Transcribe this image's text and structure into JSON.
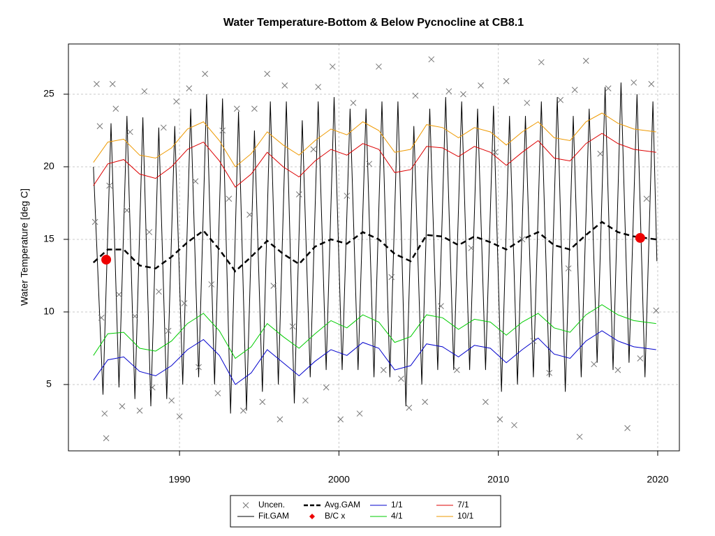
{
  "chart_data": {
    "type": "line",
    "title": "Water Temperature-Bottom & Below Pycnocline at CB8.1",
    "y_label": "Water Temperature [deg C]",
    "xlim": [
      1983.03,
      2021.36
    ],
    "ylim": [
      0.43,
      28.46
    ],
    "xticks": [
      1990,
      2000,
      2010,
      2020
    ],
    "yticks": [
      5,
      10,
      15,
      20,
      25
    ],
    "grid": true,
    "legend": "bottom",
    "series": [
      {
        "name": "Uncen.",
        "color": "#777777",
        "style": "x",
        "x": [
          1984.7,
          1984.8,
          1985.0,
          1985.1,
          1985.3,
          1985.4,
          1985.6,
          1985.8,
          1986.0,
          1986.2,
          1986.4,
          1986.7,
          1986.9,
          1987.2,
          1987.5,
          1987.8,
          1988.1,
          1988.3,
          1988.7,
          1989.0,
          1989.3,
          1989.5,
          1989.8,
          1990.0,
          1990.3,
          1990.6,
          1991.0,
          1991.2,
          1991.6,
          1992.0,
          1992.4,
          1992.7,
          1993.1,
          1993.6,
          1994.0,
          1994.4,
          1994.7,
          1995.2,
          1995.5,
          1995.9,
          1996.3,
          1996.6,
          1997.1,
          1997.5,
          1997.9,
          1998.4,
          1998.7,
          1999.2,
          1999.6,
          2000.1,
          2000.5,
          2000.9,
          2001.3,
          2001.9,
          2002.5,
          2002.8,
          2003.3,
          2003.9,
          2004.4,
          2004.8,
          2005.4,
          2005.8,
          2006.4,
          2006.9,
          2007.4,
          2007.8,
          2008.3,
          2008.9,
          2009.2,
          2009.8,
          2010.1,
          2010.5,
          2011.0,
          2011.5,
          2011.8,
          2012.2,
          2012.7,
          2013.2,
          2013.9,
          2014.4,
          2014.8,
          2015.1,
          2015.5,
          2016.0,
          2016.4,
          2016.9,
          2017.5,
          2018.1,
          2018.5,
          2018.9,
          2019.3,
          2019.6,
          2019.9
        ],
        "values": [
          16.2,
          25.7,
          22.8,
          9.6,
          3.0,
          1.3,
          18.7,
          25.7,
          24.0,
          11.2,
          3.5,
          17.0,
          22.4,
          9.7,
          3.2,
          25.2,
          15.5,
          4.8,
          11.4,
          22.7,
          8.7,
          3.9,
          24.5,
          2.8,
          10.6,
          25.4,
          19.0,
          6.2,
          26.4,
          11.9,
          4.4,
          22.5,
          17.8,
          24.0,
          3.2,
          16.7,
          24.0,
          3.8,
          26.4,
          11.8,
          2.6,
          25.6,
          9.0,
          18.1,
          3.9,
          21.2,
          25.5,
          4.8,
          26.9,
          2.6,
          18.0,
          24.4,
          3.0,
          20.2,
          26.9,
          6.0,
          12.4,
          5.4,
          3.4,
          24.9,
          3.8,
          27.4,
          10.4,
          25.2,
          6.0,
          25.0,
          14.4,
          25.6,
          3.8,
          21.0,
          2.6,
          25.9,
          2.2,
          15.0,
          24.4,
          8.0,
          27.2,
          5.8,
          24.6,
          13.0,
          25.3,
          1.4,
          27.3,
          6.4,
          20.9,
          25.4,
          6.0,
          2.0,
          25.8,
          6.8,
          17.8,
          25.7,
          10.1
        ]
      },
      {
        "name": "Fit.GAM",
        "color": "#000000",
        "style": "solid",
        "x": [
          1984.6,
          1985.2,
          1985.7,
          1986.2,
          1986.7,
          1987.2,
          1987.7,
          1988.2,
          1988.7,
          1989.2,
          1989.7,
          1990.2,
          1990.7,
          1991.2,
          1991.7,
          1992.2,
          1992.7,
          1993.2,
          1993.7,
          1994.2,
          1994.7,
          1995.2,
          1995.7,
          1996.2,
          1996.7,
          1997.2,
          1997.7,
          1998.2,
          1998.7,
          1999.2,
          1999.7,
          2000.2,
          2000.7,
          2001.2,
          2001.7,
          2002.2,
          2002.7,
          2003.2,
          2003.7,
          2004.2,
          2004.7,
          2005.2,
          2005.7,
          2006.2,
          2006.7,
          2007.2,
          2007.7,
          2008.2,
          2008.7,
          2009.2,
          2009.7,
          2010.2,
          2010.7,
          2011.2,
          2011.7,
          2012.2,
          2012.7,
          2013.2,
          2013.7,
          2014.2,
          2014.7,
          2015.2,
          2015.7,
          2016.2,
          2016.7,
          2017.2,
          2017.7,
          2018.2,
          2018.7,
          2019.2,
          2019.7,
          2019.95
        ],
        "values": [
          20.0,
          4.3,
          23.0,
          4.8,
          23.5,
          4.0,
          23.4,
          3.5,
          22.7,
          4.0,
          22.8,
          5.0,
          24.0,
          5.5,
          25.0,
          5.0,
          24.7,
          3.0,
          23.8,
          3.2,
          22.5,
          4.5,
          24.5,
          5.0,
          24.5,
          3.7,
          23.2,
          5.5,
          24.5,
          6.0,
          24.8,
          6.0,
          24.0,
          6.0,
          24.0,
          5.5,
          24.5,
          5.5,
          24.5,
          3.5,
          22.8,
          5.0,
          24.0,
          6.0,
          24.8,
          6.0,
          24.5,
          6.0,
          24.0,
          6.0,
          24.2,
          4.5,
          23.5,
          5.0,
          23.5,
          5.5,
          24.5,
          5.5,
          24.8,
          4.5,
          23.5,
          5.5,
          24.0,
          6.5,
          25.5,
          6.0,
          25.8,
          6.5,
          25.0,
          5.5,
          24.5,
          13.5
        ]
      },
      {
        "name": "Avg.GAM",
        "color": "#000000",
        "style": "dashed",
        "x": [
          1984.6,
          1985.5,
          1986.5,
          1987.5,
          1988.5,
          1989.5,
          1990.5,
          1991.5,
          1992.5,
          1993.5,
          1994.5,
          1995.5,
          1996.5,
          1997.5,
          1998.5,
          1999.5,
          2000.5,
          2001.5,
          2002.5,
          2003.5,
          2004.5,
          2005.5,
          2006.5,
          2007.5,
          2008.5,
          2009.5,
          2010.5,
          2011.5,
          2012.5,
          2013.5,
          2014.5,
          2015.5,
          2016.5,
          2017.5,
          2018.5,
          2019.9
        ],
        "values": [
          13.4,
          14.3,
          14.3,
          13.2,
          13.0,
          13.8,
          14.8,
          15.6,
          14.3,
          12.8,
          13.8,
          14.9,
          14.0,
          13.3,
          14.5,
          15.0,
          14.7,
          15.5,
          15.0,
          14.0,
          13.5,
          15.3,
          15.2,
          14.6,
          15.2,
          14.8,
          14.3,
          15.0,
          15.5,
          14.6,
          14.3,
          15.3,
          16.2,
          15.5,
          15.2,
          15.0
        ]
      },
      {
        "name": "B/C x",
        "color": "#ee0000",
        "style": "dot",
        "x": [
          1985.4,
          2018.9
        ],
        "values": [
          13.6,
          15.1
        ]
      },
      {
        "name": "1/1",
        "color": "#0000cc",
        "style": "solid",
        "x": [
          1984.6,
          1985.5,
          1986.5,
          1987.5,
          1988.5,
          1989.5,
          1990.5,
          1991.5,
          1992.5,
          1993.5,
          1994.5,
          1995.5,
          1996.5,
          1997.5,
          1998.5,
          1999.5,
          2000.5,
          2001.5,
          2002.5,
          2003.5,
          2004.5,
          2005.5,
          2006.5,
          2007.5,
          2008.5,
          2009.5,
          2010.5,
          2011.5,
          2012.5,
          2013.5,
          2014.5,
          2015.5,
          2016.5,
          2017.5,
          2018.5,
          2019.9
        ],
        "values": [
          5.3,
          6.7,
          6.9,
          5.9,
          5.6,
          6.3,
          7.4,
          8.1,
          7.0,
          5.0,
          5.8,
          7.4,
          6.5,
          5.6,
          6.6,
          7.4,
          7.0,
          7.9,
          7.5,
          6.0,
          6.3,
          7.8,
          7.6,
          6.9,
          7.7,
          7.5,
          6.5,
          7.4,
          8.2,
          7.1,
          6.8,
          8.0,
          8.7,
          8.0,
          7.6,
          7.4
        ]
      },
      {
        "name": "4/1",
        "color": "#00cc00",
        "style": "solid",
        "x": [
          1984.6,
          1985.5,
          1986.5,
          1987.5,
          1988.5,
          1989.5,
          1990.5,
          1991.5,
          1992.5,
          1993.5,
          1994.5,
          1995.5,
          1996.5,
          1997.5,
          1998.5,
          1999.5,
          2000.5,
          2001.5,
          2002.5,
          2003.5,
          2004.5,
          2005.5,
          2006.5,
          2007.5,
          2008.5,
          2009.5,
          2010.5,
          2011.5,
          2012.5,
          2013.5,
          2014.5,
          2015.5,
          2016.5,
          2017.5,
          2018.5,
          2019.9
        ],
        "values": [
          7.0,
          8.5,
          8.6,
          7.5,
          7.3,
          8.0,
          9.2,
          9.9,
          8.7,
          6.8,
          7.6,
          9.2,
          8.3,
          7.5,
          8.5,
          9.4,
          8.9,
          9.8,
          9.3,
          7.9,
          8.3,
          9.8,
          9.6,
          8.8,
          9.5,
          9.3,
          8.4,
          9.3,
          9.9,
          8.9,
          8.6,
          9.8,
          10.5,
          9.8,
          9.4,
          9.2
        ]
      },
      {
        "name": "7/1",
        "color": "#dd0000",
        "style": "solid",
        "x": [
          1984.6,
          1985.5,
          1986.5,
          1987.5,
          1988.5,
          1989.5,
          1990.5,
          1991.5,
          1992.5,
          1993.5,
          1994.5,
          1995.5,
          1996.5,
          1997.5,
          1998.5,
          1999.5,
          2000.5,
          2001.5,
          2002.5,
          2003.5,
          2004.5,
          2005.5,
          2006.5,
          2007.5,
          2008.5,
          2009.5,
          2010.5,
          2011.5,
          2012.5,
          2013.5,
          2014.5,
          2015.5,
          2016.5,
          2017.5,
          2018.5,
          2019.9
        ],
        "values": [
          18.7,
          20.2,
          20.5,
          19.5,
          19.2,
          20.0,
          21.2,
          21.7,
          20.4,
          18.6,
          19.5,
          21.0,
          20.0,
          19.3,
          20.4,
          21.2,
          20.8,
          21.6,
          21.2,
          19.6,
          19.8,
          21.4,
          21.3,
          20.7,
          21.4,
          21.0,
          20.1,
          21.0,
          21.8,
          20.6,
          20.4,
          21.6,
          22.3,
          21.6,
          21.2,
          21.0
        ]
      },
      {
        "name": "10/1",
        "color": "#ee9900",
        "style": "solid",
        "x": [
          1984.6,
          1985.5,
          1986.5,
          1987.5,
          1988.5,
          1989.5,
          1990.5,
          1991.5,
          1992.5,
          1993.5,
          1994.5,
          1995.5,
          1996.5,
          1997.5,
          1998.5,
          1999.5,
          2000.5,
          2001.5,
          2002.5,
          2003.5,
          2004.5,
          2005.5,
          2006.5,
          2007.5,
          2008.5,
          2009.5,
          2010.5,
          2011.5,
          2012.5,
          2013.5,
          2014.5,
          2015.5,
          2016.5,
          2017.5,
          2018.5,
          2019.9
        ],
        "values": [
          20.3,
          21.7,
          21.9,
          20.8,
          20.6,
          21.3,
          22.6,
          23.1,
          21.8,
          20.0,
          20.9,
          22.4,
          21.5,
          20.8,
          21.8,
          22.6,
          22.2,
          23.1,
          22.5,
          21.0,
          21.2,
          22.9,
          22.7,
          22.0,
          22.7,
          22.4,
          21.5,
          22.4,
          23.1,
          22.0,
          21.8,
          23.1,
          23.7,
          23.0,
          22.6,
          22.4
        ]
      }
    ]
  }
}
